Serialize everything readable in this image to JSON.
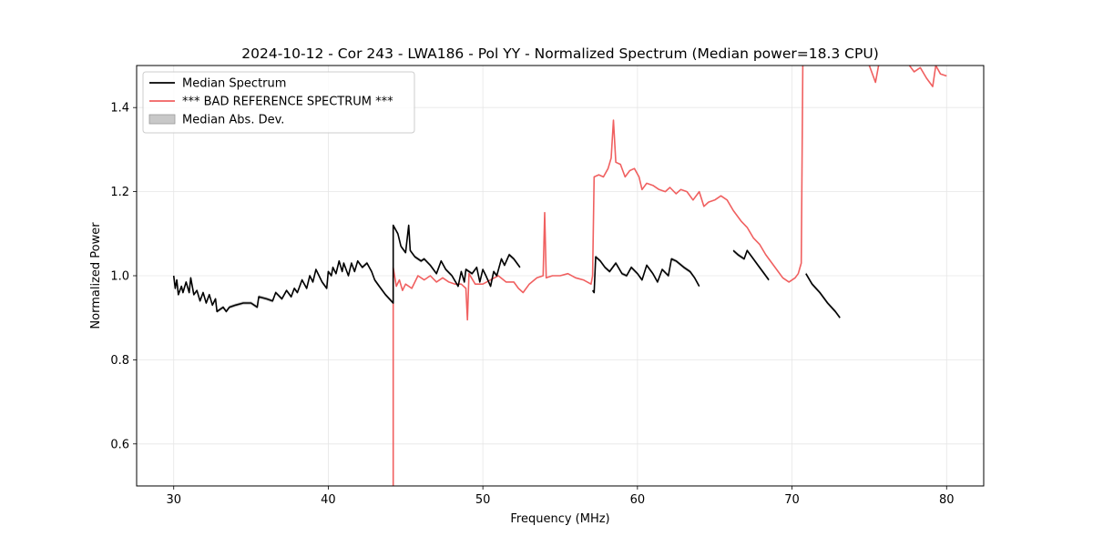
{
  "chart_data": {
    "type": "line",
    "title": "2024-10-12 - Cor 243 - LWA186 - Pol YY - Normalized Spectrum (Median power=18.3 CPU)",
    "xlabel": "Frequency (MHz)",
    "ylabel": "Normalized Power",
    "xlim": [
      27.6,
      82.4
    ],
    "ylim": [
      0.5,
      1.5
    ],
    "xticks": [
      30,
      40,
      50,
      60,
      70,
      80
    ],
    "yticks": [
      0.6,
      0.8,
      1.0,
      1.2,
      1.4
    ],
    "xtick_labels": [
      "30",
      "40",
      "50",
      "60",
      "70",
      "80"
    ],
    "ytick_labels": [
      "0.6",
      "0.8",
      "1.0",
      "1.2",
      "1.4"
    ],
    "grid": true,
    "legend_position": "top-left",
    "colors": {
      "median": "#000000",
      "reference": "#f06060",
      "mad": "#c8c8c8"
    },
    "legend": [
      {
        "label": "Median Spectrum",
        "kind": "line",
        "color": "#000000"
      },
      {
        "label": "*** BAD REFERENCE SPECTRUM ***",
        "kind": "line",
        "color": "#f06060"
      },
      {
        "label": "Median Abs. Dev.",
        "kind": "patch",
        "color": "#c8c8c8"
      }
    ],
    "series": [
      {
        "name": "Median Spectrum",
        "segments": [
          [
            [
              30.0,
              1.0
            ],
            [
              30.1,
              0.97
            ],
            [
              30.2,
              0.99
            ],
            [
              30.3,
              0.955
            ],
            [
              30.5,
              0.975
            ],
            [
              30.6,
              0.96
            ],
            [
              30.8,
              0.985
            ],
            [
              31.0,
              0.96
            ],
            [
              31.1,
              0.995
            ],
            [
              31.3,
              0.955
            ],
            [
              31.5,
              0.965
            ],
            [
              31.7,
              0.94
            ],
            [
              31.9,
              0.96
            ],
            [
              32.1,
              0.935
            ],
            [
              32.3,
              0.955
            ],
            [
              32.5,
              0.93
            ],
            [
              32.7,
              0.945
            ],
            [
              32.8,
              0.915
            ],
            [
              33.2,
              0.925
            ],
            [
              33.4,
              0.915
            ],
            [
              33.6,
              0.925
            ],
            [
              34.0,
              0.93
            ],
            [
              34.5,
              0.935
            ],
            [
              35.0,
              0.935
            ],
            [
              35.4,
              0.925
            ],
            [
              35.5,
              0.95
            ],
            [
              36.0,
              0.945
            ],
            [
              36.4,
              0.94
            ],
            [
              36.6,
              0.96
            ],
            [
              37.0,
              0.945
            ],
            [
              37.3,
              0.965
            ],
            [
              37.6,
              0.95
            ],
            [
              37.8,
              0.97
            ],
            [
              38.0,
              0.96
            ],
            [
              38.3,
              0.99
            ],
            [
              38.6,
              0.97
            ],
            [
              38.8,
              1.0
            ],
            [
              39.0,
              0.985
            ],
            [
              39.2,
              1.015
            ],
            [
              39.6,
              0.985
            ],
            [
              39.9,
              0.97
            ],
            [
              40.0,
              1.01
            ],
            [
              40.2,
              1.0
            ],
            [
              40.3,
              1.02
            ],
            [
              40.5,
              1.005
            ],
            [
              40.7,
              1.035
            ],
            [
              40.9,
              1.01
            ],
            [
              41.0,
              1.03
            ],
            [
              41.3,
              1.0
            ],
            [
              41.5,
              1.03
            ],
            [
              41.7,
              1.01
            ],
            [
              41.9,
              1.035
            ],
            [
              42.2,
              1.02
            ],
            [
              42.5,
              1.03
            ],
            [
              42.8,
              1.01
            ],
            [
              43.0,
              0.99
            ],
            [
              43.3,
              0.975
            ],
            [
              43.7,
              0.955
            ],
            [
              44.2,
              0.935
            ],
            [
              44.2,
              1.12
            ],
            [
              44.5,
              1.1
            ],
            [
              44.7,
              1.07
            ],
            [
              45.0,
              1.055
            ],
            [
              45.2,
              1.12
            ],
            [
              45.3,
              1.06
            ],
            [
              45.6,
              1.045
            ],
            [
              46.0,
              1.035
            ],
            [
              46.2,
              1.04
            ],
            [
              46.6,
              1.025
            ],
            [
              47.0,
              1.005
            ],
            [
              47.3,
              1.035
            ],
            [
              47.6,
              1.015
            ],
            [
              48.0,
              1.0
            ],
            [
              48.4,
              0.975
            ],
            [
              48.6,
              1.01
            ],
            [
              48.8,
              0.985
            ],
            [
              48.9,
              1.015
            ],
            [
              49.3,
              1.005
            ],
            [
              49.6,
              1.02
            ],
            [
              49.8,
              0.985
            ],
            [
              50.0,
              1.015
            ],
            [
              50.2,
              1.0
            ],
            [
              50.5,
              0.975
            ],
            [
              50.7,
              1.01
            ],
            [
              50.9,
              1.0
            ],
            [
              51.2,
              1.04
            ],
            [
              51.4,
              1.025
            ],
            [
              51.7,
              1.05
            ],
            [
              52.0,
              1.04
            ],
            [
              52.4,
              1.02
            ]
          ],
          [
            [
              57.1,
              0.965
            ],
            [
              57.2,
              0.96
            ],
            [
              57.3,
              1.045
            ],
            [
              57.6,
              1.035
            ],
            [
              57.9,
              1.02
            ],
            [
              58.2,
              1.01
            ],
            [
              58.6,
              1.03
            ],
            [
              59.0,
              1.005
            ],
            [
              59.3,
              1.0
            ],
            [
              59.6,
              1.02
            ],
            [
              60.0,
              1.005
            ],
            [
              60.3,
              0.99
            ],
            [
              60.6,
              1.025
            ],
            [
              60.9,
              1.01
            ],
            [
              61.0,
              1.005
            ],
            [
              61.3,
              0.985
            ],
            [
              61.6,
              1.015
            ],
            [
              62.0,
              1.0
            ],
            [
              62.2,
              1.04
            ],
            [
              62.5,
              1.035
            ],
            [
              63.0,
              1.02
            ],
            [
              63.4,
              1.01
            ],
            [
              63.7,
              0.995
            ],
            [
              64.0,
              0.975
            ]
          ],
          [
            [
              66.2,
              1.06
            ],
            [
              66.5,
              1.05
            ],
            [
              66.9,
              1.04
            ],
            [
              67.1,
              1.06
            ],
            [
              67.4,
              1.045
            ],
            [
              67.8,
              1.025
            ],
            [
              68.1,
              1.01
            ],
            [
              68.5,
              0.99
            ]
          ],
          [
            [
              70.9,
              1.005
            ],
            [
              71.3,
              0.98
            ],
            [
              71.8,
              0.96
            ],
            [
              72.3,
              0.935
            ],
            [
              72.8,
              0.915
            ],
            [
              73.1,
              0.9
            ]
          ]
        ]
      },
      {
        "name": "*** BAD REFERENCE SPECTRUM ***",
        "segments": [
          [
            [
              44.2,
              0.5
            ],
            [
              44.2,
              1.02
            ],
            [
              44.4,
              0.975
            ],
            [
              44.6,
              0.99
            ],
            [
              44.8,
              0.965
            ],
            [
              45.0,
              0.98
            ],
            [
              45.4,
              0.97
            ],
            [
              45.8,
              1.0
            ],
            [
              46.2,
              0.99
            ],
            [
              46.6,
              1.0
            ],
            [
              47.0,
              0.985
            ],
            [
              47.4,
              0.995
            ],
            [
              47.8,
              0.985
            ],
            [
              48.2,
              0.98
            ],
            [
              48.6,
              0.98
            ],
            [
              48.9,
              0.97
            ],
            [
              49.0,
              0.895
            ],
            [
              49.1,
              1.005
            ],
            [
              49.5,
              0.98
            ],
            [
              50.0,
              0.98
            ],
            [
              50.5,
              0.99
            ],
            [
              51.0,
              1.0
            ],
            [
              51.5,
              0.985
            ],
            [
              52.0,
              0.985
            ],
            [
              52.3,
              0.97
            ],
            [
              52.6,
              0.96
            ],
            [
              53.0,
              0.98
            ],
            [
              53.5,
              0.995
            ],
            [
              53.9,
              1.0
            ],
            [
              54.0,
              1.15
            ],
            [
              54.1,
              0.995
            ],
            [
              54.5,
              1.0
            ],
            [
              55.0,
              1.0
            ],
            [
              55.5,
              1.005
            ],
            [
              56.0,
              0.995
            ],
            [
              56.5,
              0.99
            ],
            [
              57.0,
              0.98
            ],
            [
              57.1,
              1.0
            ],
            [
              57.2,
              1.235
            ],
            [
              57.5,
              1.24
            ],
            [
              57.8,
              1.235
            ],
            [
              58.1,
              1.255
            ],
            [
              58.3,
              1.28
            ],
            [
              58.45,
              1.37
            ],
            [
              58.6,
              1.27
            ],
            [
              58.9,
              1.265
            ],
            [
              59.2,
              1.235
            ],
            [
              59.5,
              1.25
            ],
            [
              59.8,
              1.255
            ],
            [
              60.1,
              1.235
            ],
            [
              60.3,
              1.205
            ],
            [
              60.6,
              1.22
            ],
            [
              61.0,
              1.215
            ],
            [
              61.4,
              1.205
            ],
            [
              61.8,
              1.2
            ],
            [
              62.1,
              1.21
            ],
            [
              62.5,
              1.195
            ],
            [
              62.8,
              1.205
            ],
            [
              63.2,
              1.2
            ],
            [
              63.6,
              1.18
            ],
            [
              64.0,
              1.2
            ],
            [
              64.3,
              1.165
            ],
            [
              64.6,
              1.175
            ],
            [
              65.0,
              1.18
            ],
            [
              65.4,
              1.19
            ],
            [
              65.8,
              1.18
            ],
            [
              66.2,
              1.155
            ],
            [
              66.7,
              1.13
            ],
            [
              67.1,
              1.115
            ],
            [
              67.5,
              1.09
            ],
            [
              67.9,
              1.075
            ],
            [
              68.3,
              1.05
            ],
            [
              68.7,
              1.03
            ],
            [
              69.1,
              1.01
            ],
            [
              69.4,
              0.995
            ],
            [
              69.8,
              0.985
            ],
            [
              70.2,
              0.995
            ],
            [
              70.4,
              1.005
            ],
            [
              70.6,
              1.03
            ],
            [
              70.7,
              1.5
            ]
          ],
          [
            [
              75.0,
              1.5
            ],
            [
              75.4,
              1.46
            ],
            [
              75.6,
              1.5
            ]
          ],
          [
            [
              77.6,
              1.5
            ],
            [
              77.9,
              1.485
            ],
            [
              78.3,
              1.495
            ],
            [
              78.7,
              1.47
            ],
            [
              79.1,
              1.45
            ],
            [
              79.3,
              1.5
            ],
            [
              79.6,
              1.48
            ],
            [
              80.0,
              1.475
            ]
          ]
        ]
      }
    ]
  }
}
